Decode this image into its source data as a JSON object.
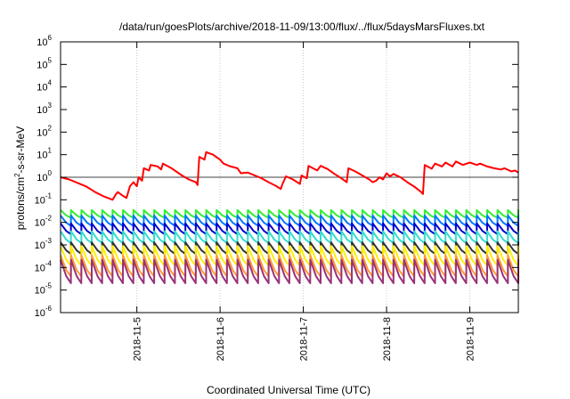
{
  "chart_data": {
    "type": "line",
    "title": "/data/run/goesPlots/archive/2018-11-09/13:00/flux/../flux/5daysMarsFluxes.txt",
    "xlabel": "Coordinated Universal Time (UTC)",
    "ylabel_main": "protons/cm",
    "ylabel_sup": "2",
    "ylabel_tail": "-s-sr-MeV",
    "y_scale": "log",
    "ylim_exp": [
      -6,
      6
    ],
    "y_ticks": [
      {
        "base": "10",
        "exp": "-6",
        "value_exp": -6
      },
      {
        "base": "10",
        "exp": "-5",
        "value_exp": -5
      },
      {
        "base": "10",
        "exp": "-4",
        "value_exp": -4
      },
      {
        "base": "10",
        "exp": "-3",
        "value_exp": -3
      },
      {
        "base": "10",
        "exp": "-2",
        "value_exp": -2
      },
      {
        "base": "10",
        "exp": "-1",
        "value_exp": -1
      },
      {
        "base": "10",
        "exp": "0",
        "value_exp": 0
      },
      {
        "base": "10",
        "exp": "1",
        "value_exp": 1
      },
      {
        "base": "10",
        "exp": "2",
        "value_exp": 2
      },
      {
        "base": "10",
        "exp": "3",
        "value_exp": 3
      },
      {
        "base": "10",
        "exp": "4",
        "value_exp": 4
      },
      {
        "base": "10",
        "exp": "5",
        "value_exp": 5
      },
      {
        "base": "10",
        "exp": "6",
        "value_exp": 6
      }
    ],
    "xlim": [
      "2018-11-04T02:00",
      "2018-11-09T14:00"
    ],
    "x_ticks": [
      {
        "label": "2018-11-5",
        "x": "2018-11-05T00:00"
      },
      {
        "label": "2018-11-6",
        "x": "2018-11-06T00:00"
      },
      {
        "label": "2018-11-7",
        "x": "2018-11-07T00:00"
      },
      {
        "label": "2018-11-8",
        "x": "2018-11-08T00:00"
      },
      {
        "label": "2018-11-9",
        "x": "2018-11-09T00:00"
      }
    ],
    "grid": "vertical lines at date ticks and horizontal line at 1",
    "legend": "none",
    "series": [
      {
        "color": "#ff0000",
        "points": [
          [
            "2018-11-04T02:00",
            1.0
          ],
          [
            "2018-11-04T04:30",
            0.8
          ],
          [
            "2018-11-04T07:00",
            0.55
          ],
          [
            "2018-11-04T09:30",
            0.38
          ],
          [
            "2018-11-04T12:00",
            0.22
          ],
          [
            "2018-11-04T14:30",
            0.14
          ],
          [
            "2018-11-04T17:00",
            0.1
          ],
          [
            "2018-11-04T18:00",
            0.18
          ],
          [
            "2018-11-04T18:30",
            0.22
          ],
          [
            "2018-11-04T20:00",
            0.15
          ],
          [
            "2018-11-04T21:00",
            0.12
          ],
          [
            "2018-11-04T22:00",
            0.4
          ],
          [
            "2018-11-04T23:00",
            0.6
          ],
          [
            "2018-11-05T00:00",
            0.4
          ],
          [
            "2018-11-05T00:30",
            1.0
          ],
          [
            "2018-11-05T01:30",
            0.7
          ],
          [
            "2018-11-05T02:00",
            2.5
          ],
          [
            "2018-11-05T03:30",
            2.0
          ],
          [
            "2018-11-05T04:00",
            3.5
          ],
          [
            "2018-11-05T06:00",
            3.0
          ],
          [
            "2018-11-05T07:00",
            2.2
          ],
          [
            "2018-11-05T07:30",
            4.0
          ],
          [
            "2018-11-05T10:00",
            2.5
          ],
          [
            "2018-11-05T13:00",
            1.2
          ],
          [
            "2018-11-05T15:00",
            0.8
          ],
          [
            "2018-11-05T17:00",
            0.6
          ],
          [
            "2018-11-05T17:30",
            0.45
          ],
          [
            "2018-11-05T18:00",
            8.0
          ],
          [
            "2018-11-05T19:30",
            6.0
          ],
          [
            "2018-11-05T20:00",
            13.0
          ],
          [
            "2018-11-05T22:00",
            10.0
          ],
          [
            "2018-11-06T00:00",
            6.0
          ],
          [
            "2018-11-06T01:00",
            4.0
          ],
          [
            "2018-11-06T03:00",
            3.0
          ],
          [
            "2018-11-06T05:00",
            2.5
          ],
          [
            "2018-11-06T06:00",
            1.5
          ],
          [
            "2018-11-06T08:00",
            1.6
          ],
          [
            "2018-11-06T10:00",
            1.2
          ],
          [
            "2018-11-06T12:00",
            0.9
          ],
          [
            "2018-11-06T14:00",
            0.6
          ],
          [
            "2018-11-06T16:00",
            0.42
          ],
          [
            "2018-11-06T17:30",
            0.3
          ],
          [
            "2018-11-06T18:00",
            0.5
          ],
          [
            "2018-11-06T19:00",
            1.1
          ],
          [
            "2018-11-06T21:00",
            0.8
          ],
          [
            "2018-11-06T23:00",
            0.5
          ],
          [
            "2018-11-06T23:30",
            1.2
          ],
          [
            "2018-11-07T01:00",
            0.9
          ],
          [
            "2018-11-07T01:30",
            3.2
          ],
          [
            "2018-11-07T03:00",
            2.4
          ],
          [
            "2018-11-07T04:00",
            2.0
          ],
          [
            "2018-11-07T05:00",
            3.2
          ],
          [
            "2018-11-07T07:00",
            2.3
          ],
          [
            "2018-11-07T09:00",
            1.4
          ],
          [
            "2018-11-07T11:00",
            0.9
          ],
          [
            "2018-11-07T12:30",
            0.6
          ],
          [
            "2018-11-07T13:00",
            2.5
          ],
          [
            "2018-11-07T15:00",
            1.8
          ],
          [
            "2018-11-07T17:00",
            1.2
          ],
          [
            "2018-11-07T19:00",
            0.8
          ],
          [
            "2018-11-07T20:00",
            0.6
          ],
          [
            "2018-11-07T21:00",
            0.7
          ],
          [
            "2018-11-07T22:00",
            1.0
          ],
          [
            "2018-11-07T23:00",
            0.8
          ],
          [
            "2018-11-08T00:00",
            1.5
          ],
          [
            "2018-11-08T01:00",
            1.1
          ],
          [
            "2018-11-08T02:00",
            1.4
          ],
          [
            "2018-11-08T04:00",
            1.0
          ],
          [
            "2018-11-08T06:00",
            0.6
          ],
          [
            "2018-11-08T08:00",
            0.38
          ],
          [
            "2018-11-08T10:00",
            0.22
          ],
          [
            "2018-11-08T10:30",
            0.18
          ],
          [
            "2018-11-08T11:00",
            3.5
          ],
          [
            "2018-11-08T13:00",
            2.4
          ],
          [
            "2018-11-08T14:00",
            4.0
          ],
          [
            "2018-11-08T16:00",
            3.0
          ],
          [
            "2018-11-08T17:00",
            4.5
          ],
          [
            "2018-11-08T19:00",
            3.0
          ],
          [
            "2018-11-08T20:00",
            5.0
          ],
          [
            "2018-11-08T22:00",
            3.5
          ],
          [
            "2018-11-09T00:00",
            4.5
          ],
          [
            "2018-11-09T02:00",
            3.5
          ],
          [
            "2018-11-09T03:00",
            4.0
          ],
          [
            "2018-11-09T05:00",
            3.0
          ],
          [
            "2018-11-09T07:00",
            2.5
          ],
          [
            "2018-11-09T09:00",
            2.2
          ],
          [
            "2018-11-09T10:00",
            2.5
          ],
          [
            "2018-11-09T12:00",
            1.8
          ],
          [
            "2018-11-09T13:00",
            2.0
          ],
          [
            "2018-11-09T14:00",
            1.6
          ]
        ]
      },
      {
        "color": "#33ee33",
        "pattern": "sawtooth",
        "period_hours": 3,
        "peak": 0.035,
        "trough": 0.016
      },
      {
        "color": "#0077ff",
        "pattern": "sawtooth",
        "period_hours": 3,
        "peak": 0.02,
        "trough": 0.007
      },
      {
        "color": "#0000cc",
        "pattern": "sawtooth",
        "period_hours": 3,
        "peak": 0.009,
        "trough": 0.003
      },
      {
        "color": "#33ddcc",
        "pattern": "sawtooth",
        "period_hours": 3,
        "peak": 0.004,
        "trough": 0.0012
      },
      {
        "color": "#333333",
        "pattern": "sawtooth",
        "period_hours": 3,
        "peak": 0.0013,
        "trough": 0.0004
      },
      {
        "color": "#ffee00",
        "pattern": "sawtooth",
        "period_hours": 3,
        "peak": 0.0009,
        "trough": 0.00012
      },
      {
        "color": "#ff9933",
        "pattern": "sawtooth",
        "period_hours": 3,
        "peak": 0.00035,
        "trough": 4e-05
      },
      {
        "color": "#993377",
        "pattern": "sawtooth",
        "period_hours": 3,
        "peak": 0.00022,
        "trough": 2e-05
      }
    ]
  }
}
